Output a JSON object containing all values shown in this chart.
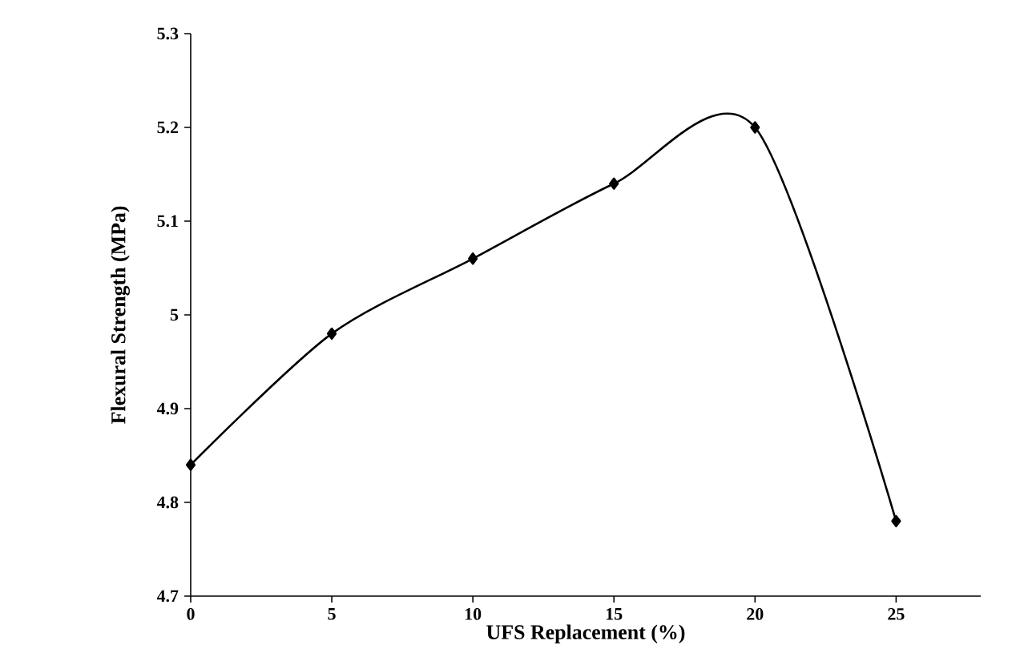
{
  "chart_data": {
    "type": "line",
    "xlabel": "UFS Replacement (%)",
    "ylabel": "Flexural Strength (MPa)",
    "x": [
      0,
      5,
      10,
      15,
      20,
      25
    ],
    "series": [
      {
        "color": "#000000",
        "values": [
          4.84,
          4.98,
          5.06,
          5.14,
          5.2,
          4.78
        ]
      }
    ],
    "xlim": [
      0,
      28
    ],
    "xticks": [
      0,
      5,
      10,
      15,
      20,
      25
    ],
    "ylim": [
      4.7,
      5.3
    ],
    "yticks": [
      4.7,
      4.8,
      4.9,
      5,
      5.1,
      5.2,
      5.3
    ],
    "marker": "diamond",
    "line_style": "solid"
  }
}
